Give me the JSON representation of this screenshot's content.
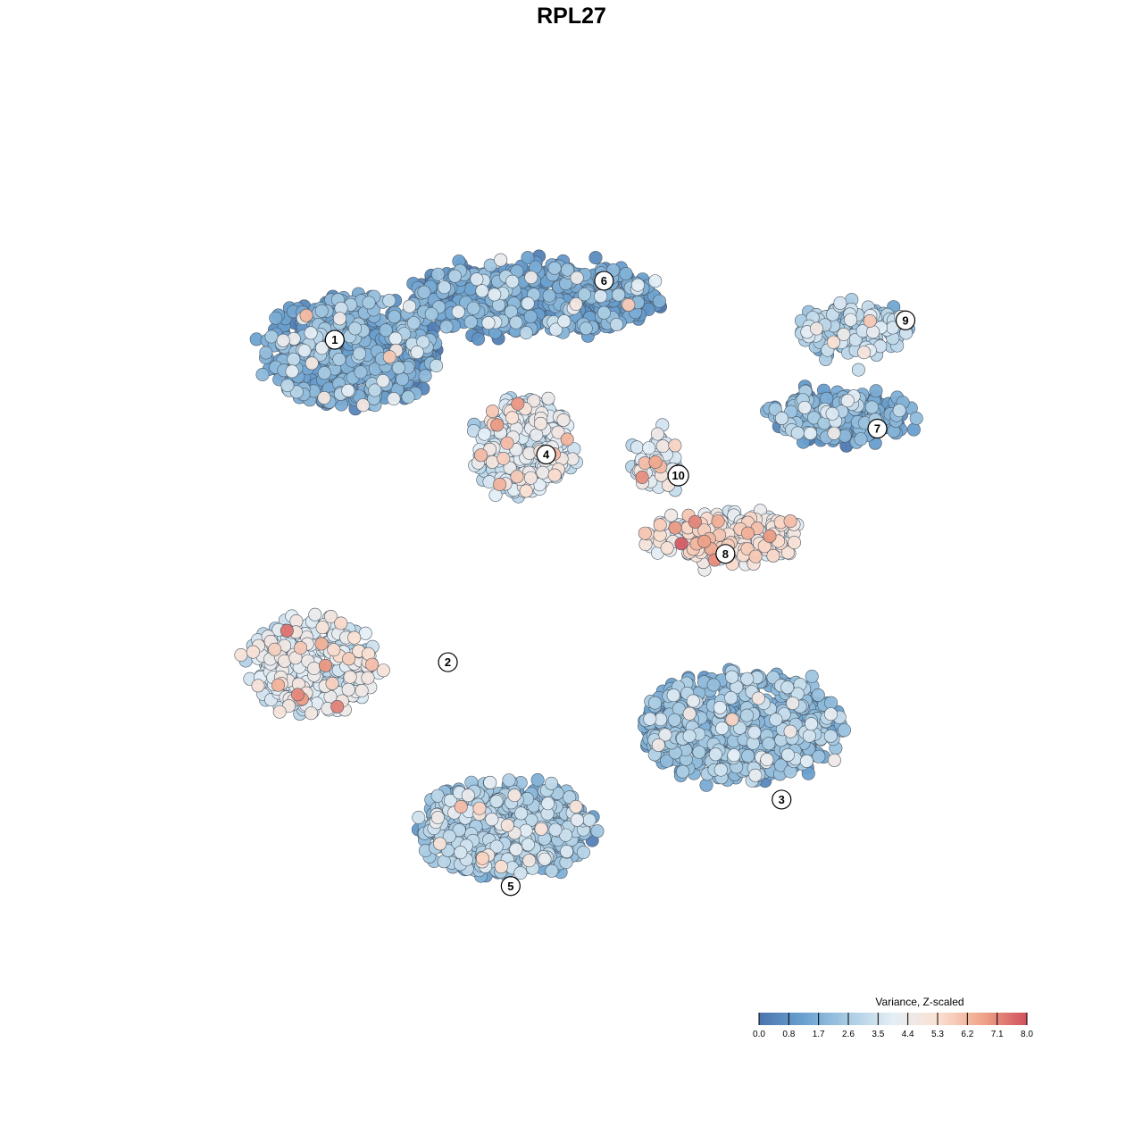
{
  "chart_data": {
    "type": "scatter",
    "title": "RPL27",
    "xlabel": "",
    "ylabel": "",
    "axes_visible": false,
    "grid": false,
    "legend": {
      "title": "Variance, Z-scaled",
      "placement": "bottom-right",
      "ticks": [
        "0.0",
        "0.8",
        "1.7",
        "2.6",
        "3.5",
        "4.4",
        "5.3",
        "6.2",
        "7.1",
        "8.0"
      ],
      "range": [
        0,
        8
      ],
      "colors": [
        "#4a74ae",
        "#6aa1d0",
        "#a9cce3",
        "#e4eef5",
        "#fbe1d3",
        "#efa58a",
        "#d1505c"
      ]
    },
    "xlim": [
      0,
      100
    ],
    "ylim": [
      0,
      100
    ],
    "clusters": [
      {
        "label": "1",
        "x": 21.0,
        "y": 77.0,
        "value": 1.3,
        "spread": [
          11,
          7
        ],
        "n": 620
      },
      {
        "label": "6",
        "x": 43.0,
        "y": 83.5,
        "value": 1.1,
        "spread": [
          16,
          4.5
        ],
        "n": 620
      },
      {
        "label": "9",
        "x": 82.0,
        "y": 79.5,
        "value": 2.6,
        "spread": [
          7,
          3
        ],
        "n": 150
      },
      {
        "label": "7",
        "x": 80.0,
        "y": 69.0,
        "value": 1.4,
        "spread": [
          9,
          3
        ],
        "n": 230
      },
      {
        "label": "4",
        "x": 42.0,
        "y": 65.0,
        "value": 3.5,
        "spread": [
          6,
          6
        ],
        "n": 330
      },
      {
        "label": "10",
        "x": 58.0,
        "y": 63.0,
        "value": 3.7,
        "spread": [
          3,
          3.5
        ],
        "n": 70
      },
      {
        "label": "8",
        "x": 66.0,
        "y": 54.0,
        "value": 4.6,
        "spread": [
          10,
          3
        ],
        "n": 240
      },
      {
        "label": "2",
        "x": 16.0,
        "y": 38.0,
        "value": 3.8,
        "spread": [
          8,
          6
        ],
        "n": 300
      },
      {
        "label": "3",
        "x": 68.0,
        "y": 30.5,
        "value": 2.0,
        "spread": [
          13,
          7
        ],
        "n": 600
      },
      {
        "label": "5",
        "x": 39.5,
        "y": 18.0,
        "value": 2.3,
        "spread": [
          11,
          6
        ],
        "n": 560
      }
    ],
    "labels": [
      {
        "text": "1",
        "x": 18.9,
        "y": 78.4
      },
      {
        "text": "6",
        "x": 51.5,
        "y": 85.7
      },
      {
        "text": "9",
        "x": 88.0,
        "y": 80.8
      },
      {
        "text": "7",
        "x": 84.6,
        "y": 67.4
      },
      {
        "text": "4",
        "x": 44.5,
        "y": 64.2
      },
      {
        "text": "10",
        "x": 60.5,
        "y": 61.6
      },
      {
        "text": "8",
        "x": 66.2,
        "y": 51.9
      },
      {
        "text": "2",
        "x": 32.6,
        "y": 38.5
      },
      {
        "text": "3",
        "x": 73.0,
        "y": 21.5
      },
      {
        "text": "5",
        "x": 40.2,
        "y": 10.8
      }
    ]
  }
}
